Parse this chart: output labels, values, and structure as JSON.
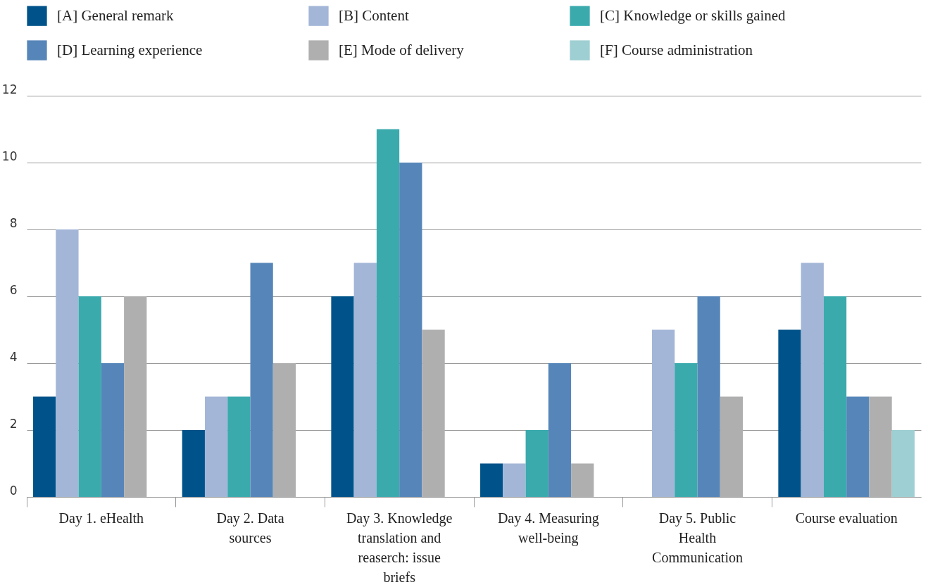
{
  "chart_data": {
    "type": "bar",
    "categories": [
      "Day 1. eHealth",
      "Day 2. Data sources",
      "Day 3. Knowledge translation and reaserch: issue briefs",
      "Day 4. Measuring well-being",
      "Day 5. Public Health Communication",
      "Course evaluation"
    ],
    "series": [
      {
        "name": "[A] General remark",
        "color": "#00538a",
        "values": [
          3,
          2,
          6,
          1,
          0,
          5
        ]
      },
      {
        "name": "[B] Content",
        "color": "#a3b6d7",
        "values": [
          8,
          3,
          7,
          1,
          5,
          7
        ]
      },
      {
        "name": "[C] Knowledge or skills gained",
        "color": "#3aaaad",
        "values": [
          6,
          3,
          11,
          2,
          4,
          6
        ]
      },
      {
        "name": "[D] Learning experience",
        "color": "#5686b9",
        "values": [
          4,
          7,
          10,
          4,
          6,
          3
        ]
      },
      {
        "name": "[E] Mode of delivery",
        "color": "#afafb0",
        "values": [
          6,
          4,
          5,
          1,
          3,
          3
        ]
      },
      {
        "name": "[F] Course administration",
        "color": "#9ecfd2",
        "values": [
          null,
          null,
          null,
          null,
          null,
          2
        ]
      }
    ],
    "ylim": [
      0,
      12
    ],
    "yticks": [
      0,
      2,
      4,
      6,
      8,
      10,
      12
    ],
    "grid": "y",
    "legend": "top"
  }
}
